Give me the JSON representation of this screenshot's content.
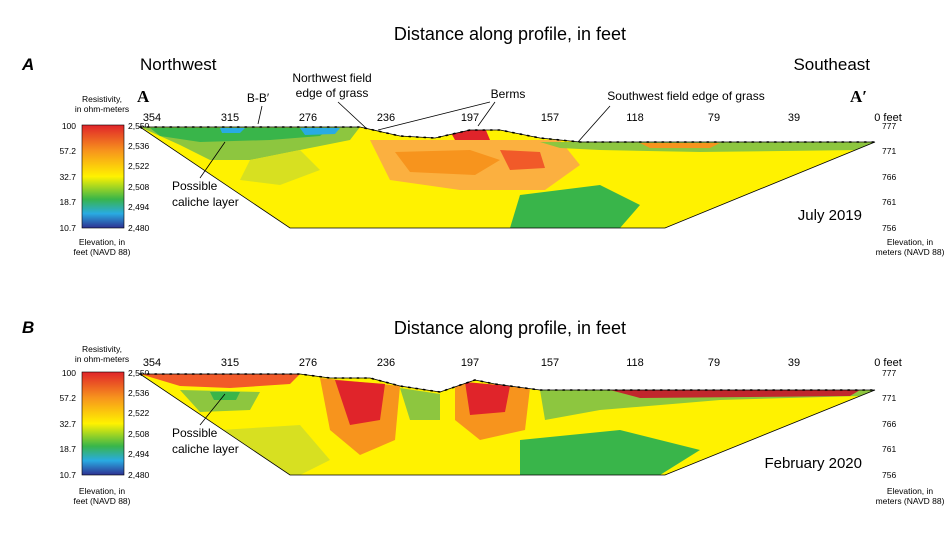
{
  "figure": {
    "title": "Distance along profile, in feet",
    "direction_left": "Northwest",
    "direction_right": "Southeast",
    "endpoint_left": "A",
    "endpoint_right": "A′",
    "distance_ticks": [
      "354",
      "315",
      "276",
      "236",
      "197",
      "157",
      "118",
      "79",
      "39",
      "0 feet"
    ],
    "resistivity_label": [
      "Resistivity,",
      "in ohm-meters"
    ],
    "resistivity_ticks": [
      "100",
      "57.2",
      "32.7",
      "18.7",
      "10.7"
    ],
    "elevation_ft_label": [
      "Elevation, in",
      "feet (NAVD 88)"
    ],
    "elevation_ft_ticks": [
      "2,550",
      "2,536",
      "2,522",
      "2,508",
      "2,494",
      "2,480"
    ],
    "elevation_m_label": [
      "Elevation, in",
      "meters (NAVD 88)"
    ],
    "elevation_m_ticks": [
      "777",
      "771",
      "766",
      "761",
      "756"
    ],
    "colors": {
      "high": "#e0242a",
      "mid_high": "#f7941d",
      "mid": "#fff200",
      "mid_low": "#39b54a",
      "low": "#2e3192"
    }
  },
  "panels": [
    {
      "letter": "A",
      "date": "July 2019",
      "annotations": {
        "bb": "B-B′",
        "northwest_field": [
          "Northwest field",
          "edge of grass"
        ],
        "berms": "Berms",
        "southwest_field": "Southwest field edge of grass",
        "caliche": [
          "Possible",
          "caliche layer"
        ]
      }
    },
    {
      "letter": "B",
      "date": "February 2020",
      "annotations": {
        "caliche": [
          "Possible",
          "caliche layer"
        ]
      }
    }
  ]
}
